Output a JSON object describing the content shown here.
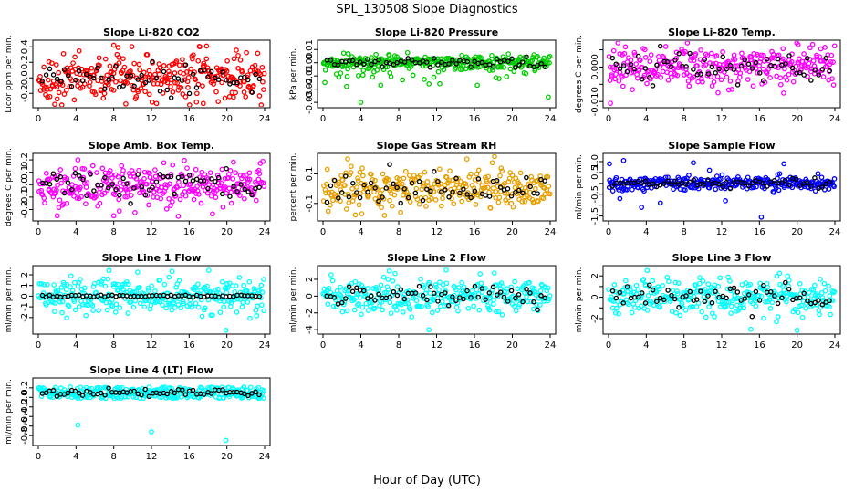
{
  "figure": {
    "title": "SPL_130508  Slope Diagnostics",
    "xlabel": "Hour of Day (UTC)"
  },
  "chart_data": [
    {
      "type": "scatter",
      "title": "Slope Li-820 CO2",
      "ylabel": "Licor ppm per min.",
      "color": "#ff0000",
      "xlim": [
        0,
        24
      ],
      "xticks": [
        0,
        4,
        8,
        12,
        16,
        20,
        24
      ],
      "ylim": [
        -0.35,
        0.45
      ],
      "yticks": [
        -0.2,
        0.0,
        0.2,
        0.4
      ],
      "yticklabels": [
        "-0.2",
        "0.0",
        "0.2",
        "0.4"
      ],
      "spread": 0.15,
      "spread_black": 0.1,
      "center": 0.0,
      "outliers": [
        [
          8.0,
          0.42
        ],
        [
          17.5,
          -0.33
        ],
        [
          20.7,
          -0.25
        ]
      ]
    },
    {
      "type": "scatter",
      "title": "Slope Li-820 Pressure",
      "ylabel": "kPa per min.",
      "color": "#00cc00",
      "xlim": [
        0,
        24
      ],
      "xticks": [
        0,
        4,
        8,
        12,
        16,
        20,
        24
      ],
      "ylim": [
        -0.032,
        0.015
      ],
      "yticks": [
        -0.03,
        -0.02,
        -0.01,
        0.0,
        0.01
      ],
      "yticklabels": [
        "-0.03",
        "-0.02",
        "-0.01",
        "0.00",
        "0.01"
      ],
      "spread": 0.003,
      "spread_black": 0.002,
      "center": 0.0,
      "outliers": [
        [
          4.0,
          -0.03
        ],
        [
          0.2,
          -0.015
        ],
        [
          2.5,
          -0.018
        ],
        [
          6.1,
          -0.017
        ],
        [
          8.4,
          -0.013
        ],
        [
          11.2,
          -0.016
        ],
        [
          16.3,
          -0.017
        ],
        [
          18.6,
          -0.012
        ],
        [
          23.8,
          -0.026
        ]
      ]
    },
    {
      "type": "scatter",
      "title": "Slope Li-820 Temp.",
      "ylabel": "degrees C per min.",
      "color": "#ff00ff",
      "xlim": [
        0,
        24
      ],
      "xticks": [
        0,
        4,
        8,
        12,
        16,
        20,
        24
      ],
      "ylim": [
        -0.011,
        0.007
      ],
      "yticks": [
        -0.01,
        -0.005,
        0.0,
        0.005
      ],
      "yticklabels": [
        "-0.010",
        "",
        "0.000",
        ""
      ],
      "spread": 0.003,
      "spread_black": 0.002,
      "center": 0.0,
      "outliers": [
        [
          0.2,
          -0.0105
        ],
        [
          20.1,
          0.0065
        ]
      ]
    },
    {
      "type": "scatter",
      "title": "Slope Amb. Box Temp.",
      "ylabel": "degrees C per min.",
      "color": "#ff00ff",
      "xlim": [
        0,
        24
      ],
      "xticks": [
        0,
        4,
        8,
        12,
        16,
        20,
        24
      ],
      "ylim": [
        -0.27,
        0.23
      ],
      "yticks": [
        -0.2,
        -0.1,
        0.0,
        0.1,
        0.2
      ],
      "yticklabels": [
        "-0.2",
        "-0.1",
        "0.0",
        "0.1",
        "0.2"
      ],
      "spread": 0.08,
      "spread_black": 0.06,
      "center": 0.0,
      "outliers": [
        [
          2.0,
          -0.25
        ],
        [
          8.0,
          -0.25
        ],
        [
          4.2,
          0.2
        ]
      ]
    },
    {
      "type": "scatter",
      "title": "Slope Gas Stream RH",
      "ylabel": "percent per min.",
      "color": "#e8a000",
      "xlim": [
        0,
        24
      ],
      "xticks": [
        0,
        4,
        8,
        12,
        16,
        20,
        24
      ],
      "ylim": [
        -0.2,
        0.22
      ],
      "yticks": [
        -0.1,
        0.1
      ],
      "yticklabels": [
        "-0.1",
        "0.1"
      ],
      "spread": 0.07,
      "spread_black": 0.05,
      "center": 0.0,
      "outliers": [
        [
          6.5,
          -0.18
        ],
        [
          15.2,
          0.2
        ],
        [
          4.1,
          -0.17
        ]
      ]
    },
    {
      "type": "scatter",
      "title": "Slope Sample Flow",
      "ylabel": "ml/min per min.",
      "color": "#0000ff",
      "xlim": [
        0,
        24
      ],
      "xticks": [
        0,
        4,
        8,
        12,
        16,
        20,
        24
      ],
      "ylim": [
        -1.6,
        1.25
      ],
      "yticks": [
        -1.5,
        -1.0,
        -0.5,
        0.0,
        0.5,
        1.0
      ],
      "yticklabels": [
        "-1.5",
        "",
        "-0.5",
        "",
        "0.5",
        "1.0"
      ],
      "spread": 0.15,
      "spread_black": 0.1,
      "center": 0.0,
      "outliers": [
        [
          16.2,
          -1.55
        ],
        [
          3.5,
          -1.1
        ],
        [
          1.6,
          1.05
        ],
        [
          9.0,
          0.95
        ],
        [
          18.6,
          0.9
        ],
        [
          5.5,
          -0.9
        ],
        [
          12.4,
          -0.8
        ],
        [
          0.1,
          0.9
        ],
        [
          1.2,
          -0.7
        ],
        [
          10.7,
          0.6
        ]
      ]
    },
    {
      "type": "scatter",
      "title": "Slope Line 1 Flow",
      "ylabel": "ml/min per min.",
      "color": "#00ffff",
      "xlim": [
        0,
        24
      ],
      "xticks": [
        0,
        4,
        8,
        12,
        16,
        20,
        24
      ],
      "ylim": [
        -3.3,
        2.6
      ],
      "yticks": [
        -2,
        -1,
        0,
        1,
        2
      ],
      "yticklabels": [
        "-2",
        "-1",
        "0",
        "1",
        "2"
      ],
      "spread": 0.85,
      "spread_black": 0.05,
      "center": 0.0,
      "outliers": [
        [
          19.9,
          -3.2
        ],
        [
          7.5,
          2.4
        ]
      ]
    },
    {
      "type": "scatter",
      "title": "Slope Line 2 Flow",
      "ylabel": "ml/min per min.",
      "color": "#00ffff",
      "xlim": [
        0,
        24
      ],
      "xticks": [
        0,
        4,
        8,
        12,
        16,
        20,
        24
      ],
      "ylim": [
        -4.2,
        3.3
      ],
      "yticks": [
        -4,
        -2,
        0,
        2
      ],
      "yticklabels": [
        "-4",
        "-2",
        "0",
        "2"
      ],
      "spread": 1.0,
      "spread_black": 0.7,
      "center": 0.0,
      "outliers": [
        [
          11.2,
          -4.0
        ],
        [
          7.0,
          3.0
        ],
        [
          13.0,
          3.1
        ]
      ]
    },
    {
      "type": "scatter",
      "title": "Slope Line 3 Flow",
      "ylabel": "ml/min per min.",
      "color": "#00ffff",
      "xlim": [
        0,
        24
      ],
      "xticks": [
        0,
        4,
        8,
        12,
        16,
        20,
        24
      ],
      "ylim": [
        -3.2,
        2.7
      ],
      "yticks": [
        -2,
        -1,
        0,
        1,
        2
      ],
      "yticklabels": [
        "-2",
        "",
        "0",
        "",
        "2"
      ],
      "spread": 0.85,
      "spread_black": 0.6,
      "center": 0.0,
      "outliers": [
        [
          15.1,
          -3.0
        ],
        [
          20.0,
          -3.1
        ],
        [
          4.1,
          2.5
        ]
      ]
    },
    {
      "type": "scatter",
      "title": "Slope Line 4 (LT) Flow",
      "ylabel": "ml/min per min.",
      "color": "#00ffff",
      "xlim": [
        0,
        24
      ],
      "xticks": [
        0,
        4,
        8,
        12,
        16,
        20,
        24
      ],
      "ylim": [
        -0.95,
        0.35
      ],
      "yticks": [
        -0.8,
        -0.6,
        -0.4,
        -0.2,
        0.0,
        0.2
      ],
      "yticklabels": [
        "-0.8",
        "-0.6",
        "-0.4",
        "-0.2",
        "0.0",
        "0.2"
      ],
      "spread": 0.05,
      "spread_black": 0.04,
      "center": 0.1,
      "outliers": [
        [
          4.2,
          -0.58
        ],
        [
          12.0,
          -0.72
        ],
        [
          19.9,
          -0.9
        ]
      ]
    }
  ]
}
